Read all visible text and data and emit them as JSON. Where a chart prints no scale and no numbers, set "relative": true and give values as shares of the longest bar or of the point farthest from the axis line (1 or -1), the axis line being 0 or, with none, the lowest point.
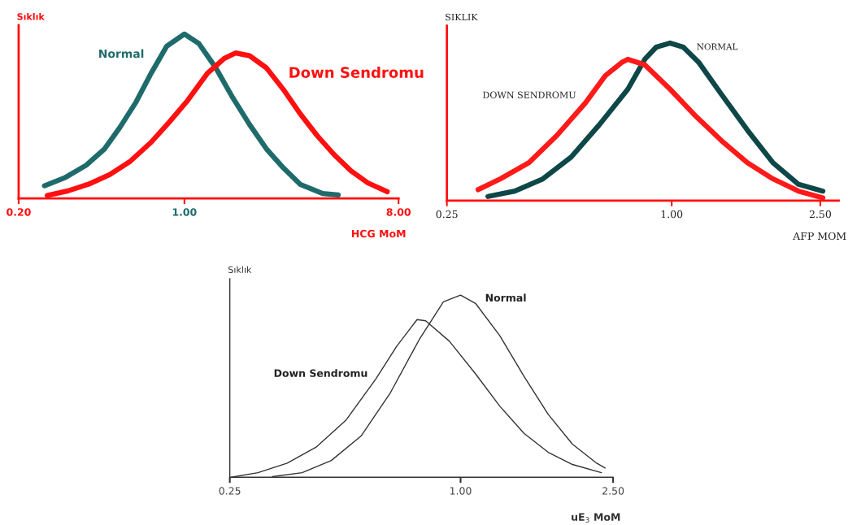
{
  "chart_data": [
    {
      "type": "line",
      "relative": true,
      "log": "x",
      "ylabel": "Sıklık",
      "xlabel": "HCG MoM",
      "xlim": [
        0.2,
        8
      ],
      "xticks": [
        {
          "value": 0.2,
          "label": "0.20"
        },
        {
          "value": 1,
          "label": "1.00"
        },
        {
          "value": 8,
          "label": "8.00"
        }
      ],
      "grid": false,
      "legend": false,
      "marker": "none",
      "line_style": "solid",
      "series": [
        {
          "name": "Normal",
          "color": "#1f6b6b",
          "x": [
            0.257,
            0.315,
            0.385,
            0.46,
            0.535,
            0.622,
            0.724,
            0.842,
            1.0,
            1.152,
            1.357,
            1.599,
            1.884,
            2.219,
            2.614,
            3.078,
            3.83,
            4.45
          ],
          "values": [
            0.077,
            0.128,
            0.202,
            0.301,
            0.433,
            0.581,
            0.762,
            0.926,
            1.0,
            0.942,
            0.794,
            0.613,
            0.449,
            0.301,
            0.186,
            0.086,
            0.03,
            0.021
          ]
        },
        {
          "name": "Down Sendromu",
          "color": "#ff1010",
          "x": [
            0.264,
            0.323,
            0.395,
            0.484,
            0.592,
            0.724,
            0.864,
            1.033,
            1.251,
            1.473,
            1.643,
            1.884,
            2.219,
            2.614,
            3.078,
            3.626,
            4.27,
            5.03,
            5.93,
            7.17
          ],
          "values": [
            0.018,
            0.046,
            0.087,
            0.145,
            0.227,
            0.342,
            0.465,
            0.597,
            0.762,
            0.852,
            0.885,
            0.868,
            0.794,
            0.663,
            0.515,
            0.383,
            0.268,
            0.169,
            0.095,
            0.041
          ]
        }
      ]
    },
    {
      "type": "line",
      "relative": true,
      "log": "x",
      "ylabel": "SIKLIK",
      "xlabel": "AFP MOM",
      "xlim": [
        0.25,
        2.8
      ],
      "xticks": [
        {
          "value": 0.25,
          "label": "0.25"
        },
        {
          "value": 1,
          "label": "1.00"
        },
        {
          "value": 2.5,
          "label": "2.50"
        }
      ],
      "grid": false,
      "legend": false,
      "marker": "none",
      "line_style": "solid",
      "series": [
        {
          "name": "NORMAL",
          "color": "#0e4747",
          "x": [
            0.322,
            0.38,
            0.452,
            0.538,
            0.641,
            0.763,
            0.847,
            0.909,
            0.99,
            1.074,
            1.18,
            1.361,
            1.594,
            1.866,
            2.186,
            2.54
          ],
          "values": [
            0.026,
            0.06,
            0.138,
            0.276,
            0.483,
            0.707,
            0.897,
            0.974,
            1.0,
            0.974,
            0.879,
            0.672,
            0.448,
            0.241,
            0.103,
            0.06
          ]
        },
        {
          "name": "DOWN SENDROMU",
          "color": "#ff1a1a",
          "x": [
            0.303,
            0.348,
            0.415,
            0.493,
            0.588,
            0.664,
            0.737,
            0.763,
            0.847,
            0.99,
            1.162,
            1.361,
            1.594,
            1.866,
            2.186,
            2.54
          ],
          "values": [
            0.069,
            0.138,
            0.241,
            0.414,
            0.621,
            0.793,
            0.879,
            0.897,
            0.862,
            0.707,
            0.534,
            0.379,
            0.241,
            0.138,
            0.06,
            0.017
          ]
        }
      ]
    },
    {
      "type": "line",
      "relative": true,
      "log": "x",
      "ylabel": "Sıklık",
      "xlabel": "uE$_{3}$ MoM",
      "xlim": [
        0.25,
        2.5
      ],
      "xticks": [
        {
          "value": 0.25,
          "label": "0.25"
        },
        {
          "value": 1,
          "label": "1.00"
        },
        {
          "value": 2.5,
          "label": "2.50"
        }
      ],
      "grid": false,
      "legend": false,
      "marker": "none",
      "line_style": "solid",
      "series": [
        {
          "name": "Normal",
          "color": "#333333",
          "x": [
            0.323,
            0.386,
            0.46,
            0.55,
            0.656,
            0.783,
            0.902,
            1.0,
            1.094,
            1.266,
            1.464,
            1.693,
            1.958,
            2.265,
            2.383
          ],
          "values": [
            0.003,
            0.025,
            0.092,
            0.226,
            0.464,
            0.762,
            0.963,
            1.0,
            0.955,
            0.777,
            0.554,
            0.345,
            0.182,
            0.077,
            0.051
          ]
        },
        {
          "name": "Down Sendromu",
          "color": "#333333",
          "x": [
            0.252,
            0.296,
            0.353,
            0.421,
            0.503,
            0.601,
            0.68,
            0.77,
            0.811,
            0.935,
            1.094,
            1.266,
            1.464,
            1.693,
            1.958,
            2.331
          ],
          "values": [
            0.0,
            0.025,
            0.077,
            0.167,
            0.315,
            0.539,
            0.717,
            0.866,
            0.859,
            0.747,
            0.568,
            0.39,
            0.241,
            0.137,
            0.07,
            0.025
          ]
        }
      ]
    }
  ]
}
